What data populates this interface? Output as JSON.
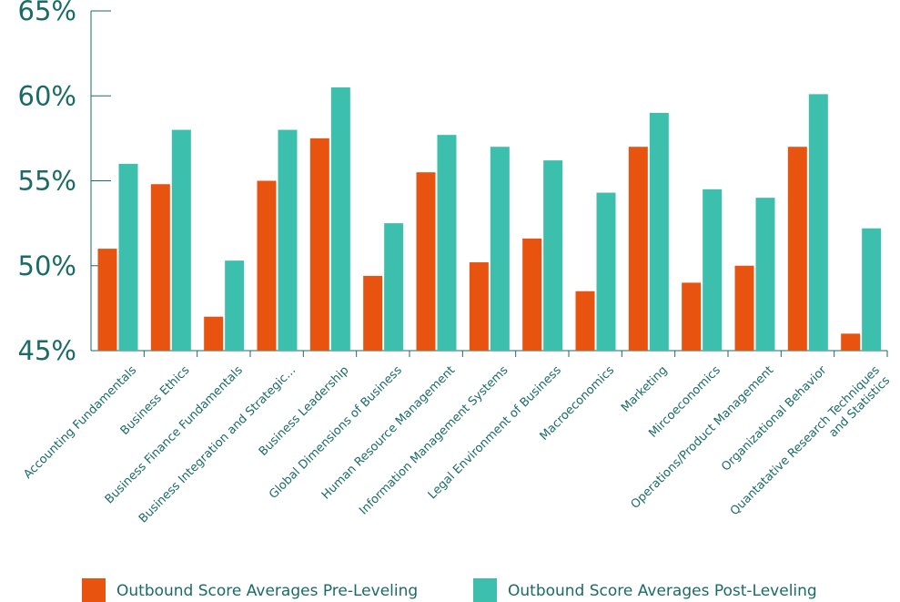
{
  "chart_data": {
    "type": "bar",
    "title": "",
    "xlabel": "",
    "ylabel": "",
    "ylim": [
      45,
      65
    ],
    "yticks": [
      45,
      50,
      55,
      60,
      65
    ],
    "ytick_labels": [
      "45%",
      "50%",
      "55%",
      "60%",
      "65%"
    ],
    "grid": false,
    "legend_position": "bottom",
    "categories": [
      [
        "Accounting Fundamentals"
      ],
      [
        "Business Ethics"
      ],
      [
        "Business Finance Fundamentals"
      ],
      [
        "Business Integration and Strategic..."
      ],
      [
        "Business Leadership"
      ],
      [
        "Global Dimensions of Business"
      ],
      [
        "Human Resource Management"
      ],
      [
        "Information Management Systems"
      ],
      [
        "Legal Environment of Business"
      ],
      [
        "Macroeconomics"
      ],
      [
        "Marketing"
      ],
      [
        "Mircoeconomics"
      ],
      [
        "Operations/Product Management"
      ],
      [
        "Organizational Behavior"
      ],
      [
        "Quantatative Research Techniques",
        "and Statistics"
      ]
    ],
    "series": [
      {
        "name": "Outbound Score Averages Pre-Leveling",
        "color": "#e85410",
        "values": [
          51.0,
          54.8,
          47.0,
          55.0,
          57.5,
          49.4,
          55.5,
          50.2,
          51.6,
          48.5,
          57.0,
          49.0,
          50.0,
          57.0,
          46.0
        ]
      },
      {
        "name": "Outbound Score Averages Post-Leveling",
        "color": "#3dbfad",
        "values": [
          56.0,
          58.0,
          50.3,
          58.0,
          60.5,
          52.5,
          57.7,
          57.0,
          56.2,
          54.3,
          59.0,
          54.5,
          54.0,
          60.1,
          52.2
        ]
      }
    ],
    "axis_color": "#1a6b66"
  }
}
